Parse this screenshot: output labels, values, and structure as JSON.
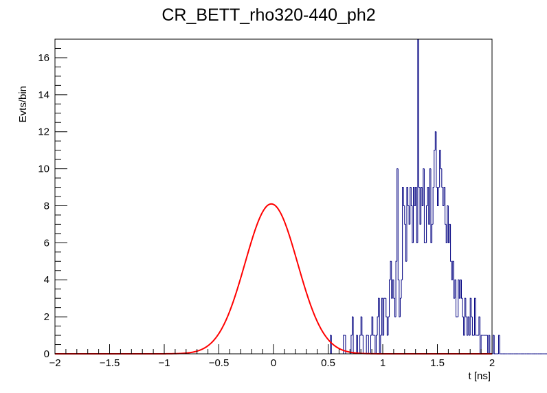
{
  "chart_data": {
    "type": "histogram",
    "title": "CR_BETT_rho320-440_ph2",
    "xlabel": "t [ns]",
    "ylabel": "Evts/bin",
    "xlim": [
      -2,
      2
    ],
    "ylim": [
      0,
      17
    ],
    "x_ticks": [
      -2,
      -1.5,
      -1,
      -0.5,
      0,
      0.5,
      1,
      1.5,
      2
    ],
    "x_tick_labels": [
      "−2",
      "−1.5",
      "−1",
      "−0.5",
      "0",
      "0.5",
      "1",
      "1.5",
      "2"
    ],
    "y_ticks": [
      0,
      2,
      4,
      6,
      8,
      10,
      12,
      14,
      16
    ],
    "y_tick_labels": [
      "0",
      "2",
      "4",
      "6",
      "8",
      "10",
      "12",
      "14",
      "16"
    ],
    "grid": false,
    "colors": {
      "histogram": "#000080",
      "fit": "#ff0000"
    },
    "histogram": {
      "bin_width": 0.01,
      "bin_start": -2.0,
      "counts": [
        0,
        0,
        0,
        0,
        0,
        0,
        0,
        0,
        0,
        0,
        0,
        0,
        0,
        0,
        0,
        0,
        0,
        0,
        0,
        0,
        0,
        0,
        0,
        0,
        0,
        0,
        0,
        0,
        0,
        0,
        0,
        0,
        0,
        0,
        0,
        0,
        0,
        0,
        0,
        0,
        0,
        0,
        0,
        0,
        0,
        0,
        0,
        0,
        0,
        0,
        0,
        0,
        0,
        0,
        0,
        0,
        0,
        0,
        0,
        0,
        0,
        0,
        0,
        0,
        0,
        0,
        0,
        0,
        0,
        0,
        0,
        0,
        0,
        0,
        0,
        0,
        0,
        0,
        0,
        0,
        0,
        0,
        0,
        0,
        0,
        0,
        0,
        0,
        0,
        0,
        0,
        0,
        0,
        0,
        0,
        0,
        0,
        0,
        0,
        0,
        0,
        0,
        0,
        0,
        0,
        0,
        0,
        0,
        0,
        0,
        0,
        0,
        0,
        0,
        0,
        0,
        0,
        0,
        0,
        0,
        0,
        0,
        0,
        0,
        0,
        0,
        0,
        0,
        0,
        0,
        0,
        0,
        0,
        0,
        0,
        0,
        0,
        0,
        0,
        0,
        0,
        0,
        0,
        0,
        0,
        0,
        0,
        0,
        0,
        0,
        0,
        0,
        0,
        0,
        0,
        0,
        0,
        0,
        0,
        0,
        0,
        0,
        0,
        0,
        0,
        0,
        0,
        0,
        0,
        0,
        0,
        0,
        0,
        0,
        0,
        0,
        0,
        0,
        0,
        0,
        0,
        0,
        0,
        0,
        0,
        0,
        0,
        0,
        0,
        0,
        0,
        0,
        0,
        0,
        0,
        0,
        0,
        0,
        0,
        0,
        0,
        0,
        0,
        0,
        0,
        0,
        0,
        0,
        0,
        0,
        0,
        0,
        0,
        0,
        0,
        0,
        0,
        0,
        0,
        0,
        0,
        0,
        0,
        0,
        0,
        0,
        0,
        0,
        0,
        0,
        0,
        0,
        0,
        0,
        0,
        0,
        0,
        0,
        0,
        0,
        0,
        0,
        0,
        0,
        0,
        0,
        0,
        0,
        0,
        0,
        0,
        0,
        1,
        0,
        0,
        0,
        0,
        0,
        0,
        0,
        0,
        0,
        0,
        0,
        1,
        1,
        0,
        0,
        0,
        0,
        0,
        1,
        2,
        0,
        0,
        0,
        1,
        0,
        0,
        1,
        2,
        1,
        0,
        0,
        0,
        1,
        1,
        0,
        0,
        1,
        2,
        1,
        1,
        0,
        1,
        2,
        3,
        0,
        1,
        3,
        1,
        3,
        3,
        2,
        1,
        2,
        4,
        5,
        3,
        4,
        3,
        2,
        5,
        10,
        4,
        2,
        3,
        4,
        9,
        8,
        7,
        5,
        9,
        8,
        7,
        9,
        8,
        6,
        9,
        8,
        9,
        6,
        17,
        9,
        7,
        9,
        8,
        10,
        6,
        6,
        8,
        9,
        7,
        10,
        6,
        7,
        9,
        11,
        12,
        9,
        8,
        9,
        11,
        10,
        9,
        8,
        9,
        7,
        6,
        8,
        6,
        7,
        5,
        4,
        5,
        3,
        4,
        2,
        2,
        4,
        3,
        4,
        3,
        2,
        1,
        3,
        2,
        1,
        2,
        1,
        3,
        2,
        1,
        1,
        3,
        1,
        1,
        1,
        2,
        0,
        1,
        1,
        1,
        1,
        1,
        1,
        0,
        1,
        0,
        0,
        0,
        1,
        0,
        0,
        0,
        0,
        1,
        0,
        0,
        0,
        0,
        0,
        0,
        0,
        0,
        0,
        0,
        0,
        0,
        0,
        0,
        0,
        0,
        0,
        0,
        0,
        0,
        0,
        0,
        0,
        0,
        0,
        0,
        0,
        0,
        0,
        0,
        0,
        0,
        0,
        0,
        0,
        0,
        0,
        0,
        0,
        0,
        0,
        0,
        0,
        0,
        0,
        0,
        0,
        0,
        0,
        0,
        0,
        0,
        0,
        0,
        0,
        0,
        0,
        0,
        0,
        0,
        0,
        0,
        0,
        0,
        0,
        0,
        0,
        0,
        0,
        0,
        0,
        0,
        0,
        0,
        0,
        0,
        0,
        0,
        0,
        0,
        0,
        0,
        0,
        0,
        0,
        0,
        0,
        0,
        0,
        0,
        0,
        0,
        0,
        0,
        0,
        0,
        0,
        0,
        0,
        0,
        0,
        0,
        0,
        0,
        0,
        0,
        0,
        0,
        0,
        0,
        0,
        0,
        0,
        0,
        0,
        0,
        0,
        0,
        0,
        0,
        0,
        0,
        0,
        0,
        0,
        0,
        0,
        0,
        0,
        0,
        0,
        0,
        0,
        0,
        0,
        0,
        0,
        0,
        0,
        0,
        0,
        0,
        0,
        0,
        0,
        0,
        0,
        0
      ]
    },
    "fit": {
      "type": "gaussian",
      "amplitude": 8.1,
      "mean": -0.02,
      "sigma": 0.24,
      "x_range": [
        -2,
        2
      ]
    }
  }
}
